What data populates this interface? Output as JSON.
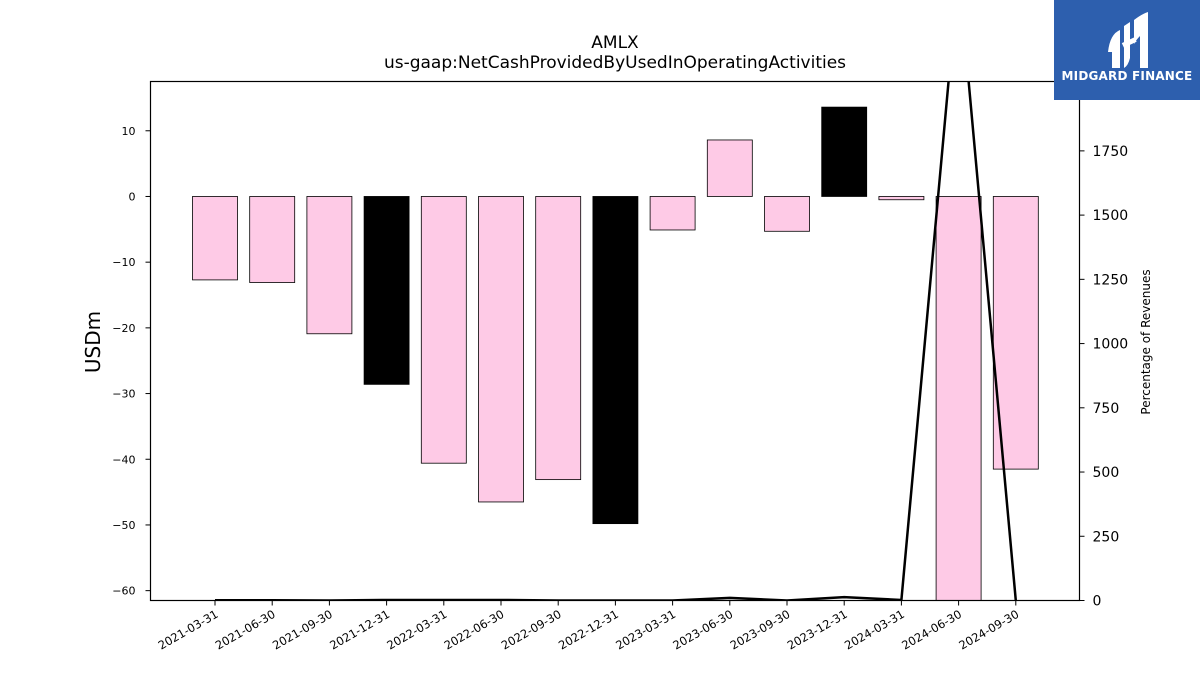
{
  "logo": {
    "brand": "MIDGARD FINANCE",
    "icon": "midgard-m-logo-icon"
  },
  "colors": {
    "bar_pink": "#fecae6",
    "bar_black": "#000000",
    "line": "#000000"
  },
  "chart_data": {
    "type": "bar",
    "title": "AMLX",
    "subtitle": "us-gaap:NetCashProvidedByUsedInOperatingActivities",
    "ylabel": "USDm",
    "y2label": "Percentage of Revenues",
    "ylim": [
      -61.5,
      17.5
    ],
    "y2lim": [
      0,
      2020
    ],
    "yticks": [
      10,
      0,
      -10,
      -20,
      -30,
      -40,
      -50,
      -60
    ],
    "y2ticks": [
      1750,
      1500,
      1250,
      1000,
      750,
      500,
      250,
      0
    ],
    "categories": [
      "2021-03-31",
      "2021-06-30",
      "2021-09-30",
      "2021-12-31",
      "2022-03-31",
      "2022-06-30",
      "2022-09-30",
      "2022-12-31",
      "2023-03-31",
      "2023-06-30",
      "2023-09-30",
      "2023-12-31",
      "2024-03-31",
      "2024-06-30",
      "2024-09-30"
    ],
    "values": [
      -12.7,
      -13.1,
      -20.9,
      -28.6,
      -40.6,
      -46.5,
      -43.1,
      -49.8,
      -5.1,
      8.6,
      -5.3,
      13.6,
      -0.5,
      -67.0,
      -41.5
    ],
    "highlight": [
      false,
      false,
      false,
      true,
      false,
      false,
      false,
      true,
      false,
      false,
      false,
      true,
      false,
      false,
      false
    ],
    "line_series": {
      "name": "Percentage of Revenues",
      "values": [
        1,
        1,
        0,
        2,
        2,
        2,
        0,
        0,
        0,
        10,
        0,
        13,
        2,
        2450,
        0
      ]
    },
    "grid": false
  }
}
